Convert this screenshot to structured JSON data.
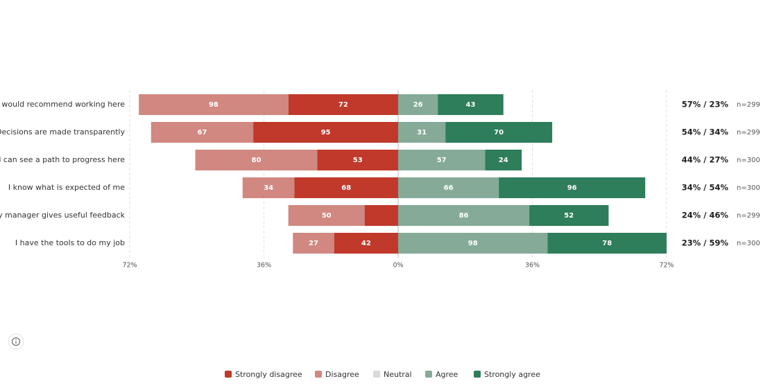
{
  "chart_data": {
    "type": "diverging_bar",
    "categories": [
      "I would recommend working here",
      "Decisions are made transparently",
      "I can see a path to progress here",
      "I know what is expected of me",
      "My manager gives useful feedback",
      "I have the tools to do my job"
    ],
    "series": [
      {
        "name": "Strongly disagree",
        "color": "#c0392b",
        "side": "left",
        "values": [
          72,
          95,
          53,
          68,
          22,
          42
        ],
        "value_labels": [
          "72",
          "95",
          "53",
          "68",
          null,
          "42"
        ]
      },
      {
        "name": "Disagree",
        "color": "#d08880",
        "side": "left",
        "values": [
          98,
          67,
          80,
          34,
          50,
          27
        ]
      },
      {
        "name": "Neutral",
        "color": "#d9d9d9"
      },
      {
        "name": "Agree",
        "color": "#85ab98",
        "side": "right",
        "values": [
          26,
          31,
          57,
          66,
          86,
          98
        ]
      },
      {
        "name": "Strongly agree",
        "color": "#2e7d5b",
        "side": "right",
        "values": [
          43,
          70,
          24,
          96,
          52,
          78
        ]
      }
    ],
    "summary": [
      "57% / 23%",
      "54% / 34%",
      "44% / 27%",
      "34% / 54%",
      "24% / 46%",
      "23% / 59%"
    ],
    "n": [
      "n=299",
      "n=299",
      "n=300",
      "n=300",
      "n=299",
      "n=300"
    ],
    "xlim": [
      -176,
      176
    ],
    "xticks": [
      {
        "value": -176,
        "label": "72%"
      },
      {
        "value": -88,
        "label": "36%"
      },
      {
        "value": 0,
        "label": "0%"
      },
      {
        "value": 88,
        "label": "36%"
      },
      {
        "value": 176,
        "label": "72%"
      }
    ],
    "grid": true
  }
}
